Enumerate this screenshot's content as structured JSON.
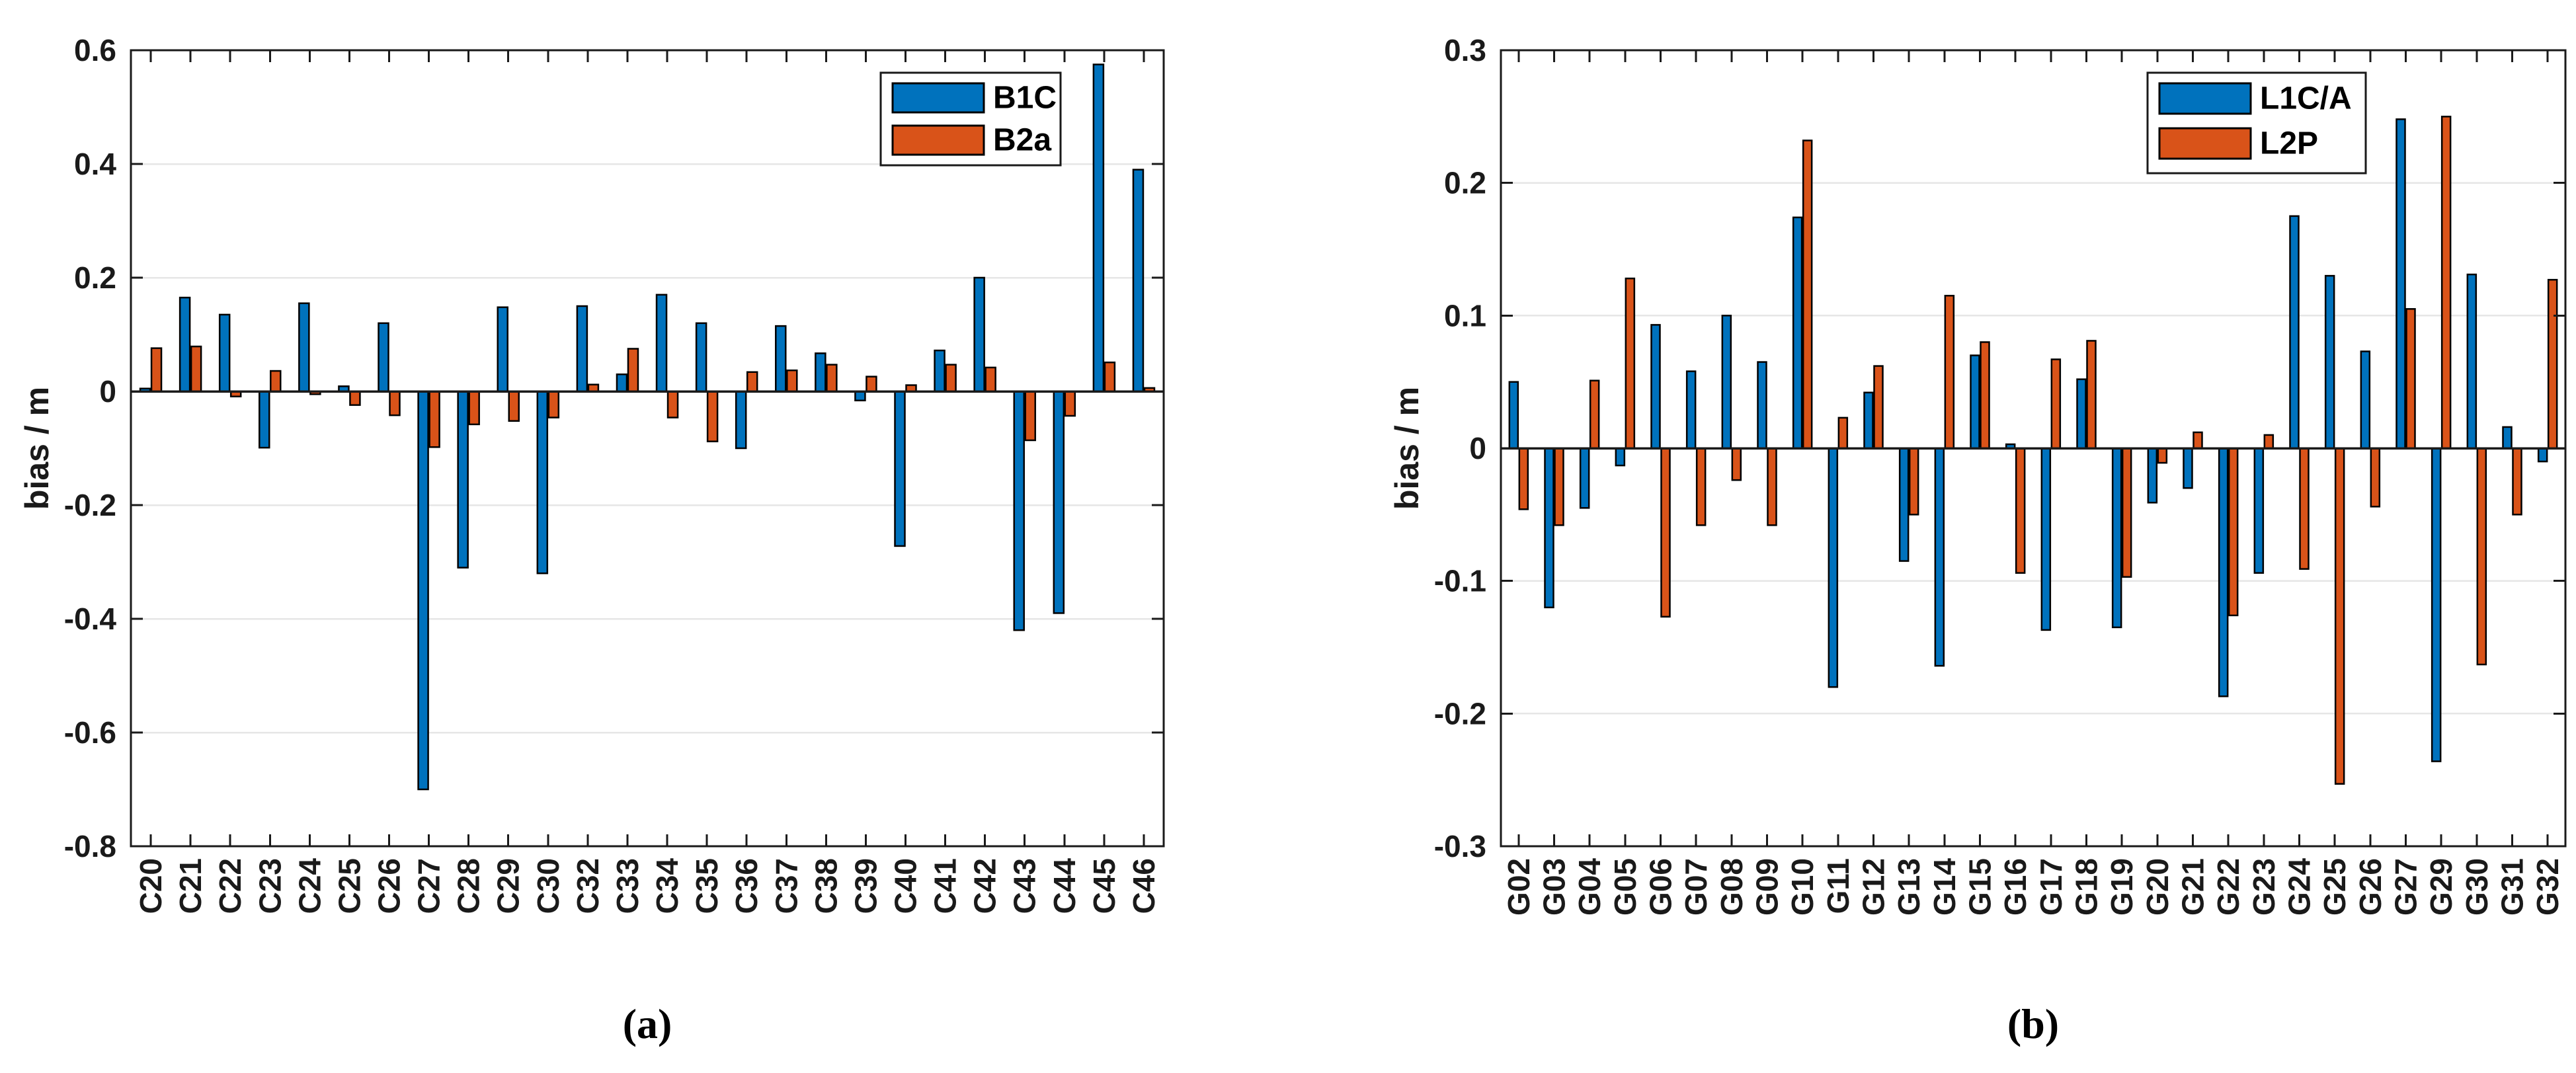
{
  "figure": {
    "background": "#ffffff",
    "axis_color": "#1a1a1a",
    "grid_color": "#e6e6e6",
    "bar_edge_color": "#000000"
  },
  "chart_data": [
    {
      "id": "a",
      "type": "bar",
      "caption": "(a)",
      "title": "",
      "xlabel": "",
      "ylabel": "bias / m",
      "ylim": [
        -0.8,
        0.6
      ],
      "ytick_step": 0.2,
      "ytick_labels": [
        "0.6",
        "0.4",
        "0.2",
        "0",
        "-0.2",
        "-0.4",
        "-0.6",
        "-0.8"
      ],
      "grid": true,
      "legend_position": "top-right-inside",
      "categories": [
        "C20",
        "C21",
        "C22",
        "C23",
        "C24",
        "C25",
        "C26",
        "C27",
        "C28",
        "C29",
        "C30",
        "C32",
        "C33",
        "C34",
        "C35",
        "C36",
        "C37",
        "C38",
        "C39",
        "C40",
        "C41",
        "C42",
        "C43",
        "C44",
        "C45",
        "C46"
      ],
      "series": [
        {
          "name": "B1C",
          "color": "#0072BD",
          "values": [
            0.005,
            0.165,
            0.135,
            -0.099,
            0.155,
            0.009,
            0.12,
            -0.7,
            -0.31,
            0.148,
            -0.32,
            0.15,
            0.03,
            0.17,
            0.12,
            -0.1,
            0.115,
            0.067,
            -0.016,
            -0.272,
            0.072,
            0.2,
            -0.42,
            -0.39,
            0.575,
            0.39
          ]
        },
        {
          "name": "B2a",
          "color": "#D95319",
          "values": [
            0.076,
            0.079,
            -0.009,
            0.036,
            -0.005,
            -0.024,
            -0.042,
            -0.098,
            -0.058,
            -0.052,
            -0.046,
            0.012,
            0.075,
            -0.046,
            -0.088,
            0.034,
            0.037,
            0.047,
            0.026,
            0.011,
            0.047,
            0.042,
            -0.086,
            -0.043,
            0.051,
            0.006
          ]
        }
      ]
    },
    {
      "id": "b",
      "type": "bar",
      "caption": "(b)",
      "title": "",
      "xlabel": "",
      "ylabel": "bias / m",
      "ylim": [
        -0.3,
        0.3
      ],
      "ytick_step": 0.1,
      "ytick_labels": [
        "0.3",
        "0.2",
        "0.1",
        "0",
        "-0.1",
        "-0.2",
        "-0.3"
      ],
      "grid": true,
      "legend_position": "top-right-inside",
      "categories": [
        "G02",
        "G03",
        "G04",
        "G05",
        "G06",
        "G07",
        "G08",
        "G09",
        "G10",
        "G11",
        "G12",
        "G13",
        "G14",
        "G15",
        "G16",
        "G17",
        "G18",
        "G19",
        "G20",
        "G21",
        "G22",
        "G23",
        "G24",
        "G25",
        "G26",
        "G27",
        "G29",
        "G30",
        "G31",
        "G32"
      ],
      "series": [
        {
          "name": "L1C/A",
          "color": "#0072BD",
          "values": [
            0.05,
            -0.12,
            -0.045,
            -0.013,
            0.093,
            0.058,
            0.1,
            0.065,
            0.174,
            -0.18,
            0.042,
            -0.085,
            -0.164,
            0.07,
            0.003,
            -0.137,
            0.052,
            -0.135,
            -0.041,
            -0.03,
            -0.187,
            -0.094,
            0.175,
            0.13,
            0.073,
            0.248,
            -0.236,
            0.131,
            0.016,
            -0.01
          ]
        },
        {
          "name": "L2P",
          "color": "#D95319",
          "values": [
            -0.046,
            -0.058,
            0.051,
            0.128,
            -0.127,
            -0.058,
            -0.024,
            -0.058,
            0.232,
            0.023,
            0.062,
            -0.05,
            0.115,
            0.08,
            -0.094,
            0.067,
            0.081,
            -0.097,
            -0.011,
            0.012,
            -0.126,
            0.01,
            -0.091,
            -0.253,
            -0.044,
            0.105,
            0.25,
            -0.163,
            -0.05,
            0.127
          ]
        }
      ]
    }
  ]
}
